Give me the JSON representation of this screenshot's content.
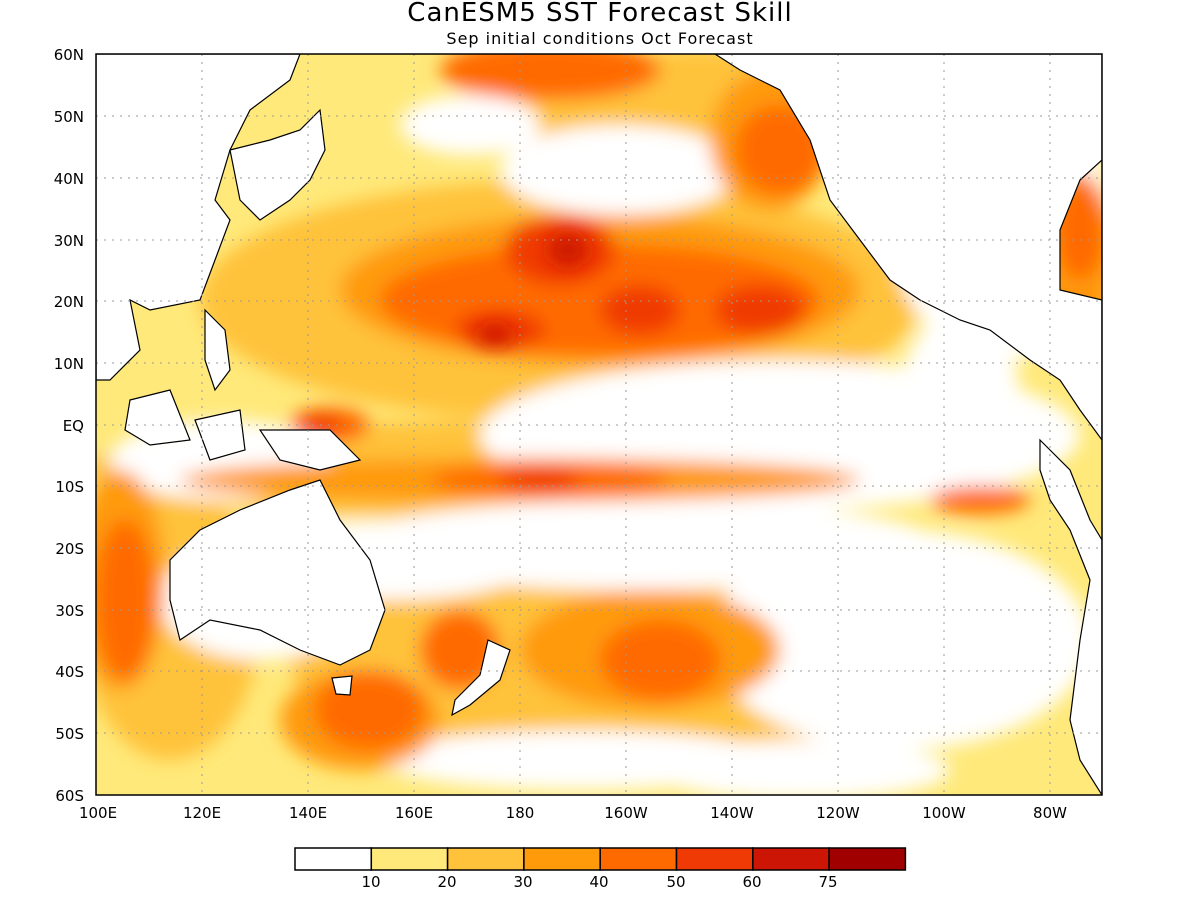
{
  "title": "CanESM5 SST Forecast Skill",
  "subtitle": "Sep initial conditions  Oct Forecast",
  "map": {
    "lon_range": [
      100,
      290
    ],
    "lat_range": [
      -60,
      60
    ],
    "lat_labels": [
      "60N",
      "50N",
      "40N",
      "30N",
      "20N",
      "10N",
      "EQ",
      "10S",
      "20S",
      "30S",
      "40S",
      "50S",
      "60S"
    ],
    "lon_labels": [
      "100E",
      "120E",
      "140E",
      "160E",
      "180",
      "160W",
      "140W",
      "120W",
      "100W",
      "80W"
    ],
    "grid": "dotted"
  },
  "colorbar": {
    "colors": [
      "#ffffff",
      "#ffe97a",
      "#ffc23a",
      "#ff9a0a",
      "#ff6a00",
      "#f03a05",
      "#cc1504",
      "#a00000"
    ],
    "labels": [
      "10",
      "20",
      "30",
      "40",
      "50",
      "60",
      "75"
    ]
  },
  "chart_data": {
    "type": "heatmap",
    "title": "CanESM5 SST Forecast Skill",
    "subtitle": "Sep initial conditions  Oct Forecast",
    "x_range": [
      100,
      290
    ],
    "y_range": [
      -60,
      60
    ],
    "levels": [
      10,
      20,
      30,
      40,
      50,
      60,
      75
    ],
    "regions": [
      {
        "lon": [
          150,
          250
        ],
        "lat": [
          10,
          30
        ],
        "value": 55
      },
      {
        "lon": [
          170,
          180
        ],
        "lat": [
          25,
          32
        ],
        "value": 70
      },
      {
        "lon": [
          165,
          175
        ],
        "lat": [
          12,
          16
        ],
        "value": 65
      },
      {
        "lon": [
          160,
          200
        ],
        "lat": [
          50,
          60
        ],
        "value": 50
      },
      {
        "lon": [
          220,
          236
        ],
        "lat": [
          38,
          48
        ],
        "value": 55
      },
      {
        "lon": [
          180,
          240
        ],
        "lat": [
          -6,
          6
        ],
        "value": 5
      },
      {
        "lon": [
          165,
          255
        ],
        "lat": [
          -12,
          -8
        ],
        "value": 50
      },
      {
        "lon": [
          100,
          115
        ],
        "lat": [
          -40,
          -10
        ],
        "value": 50
      },
      {
        "lon": [
          140,
          160
        ],
        "lat": [
          -52,
          -38
        ],
        "value": 50
      },
      {
        "lon": [
          190,
          205
        ],
        "lat": [
          -42,
          -32
        ],
        "value": 50
      },
      {
        "lon": [
          230,
          280
        ],
        "lat": [
          -30,
          0
        ],
        "value": 5
      }
    ]
  }
}
